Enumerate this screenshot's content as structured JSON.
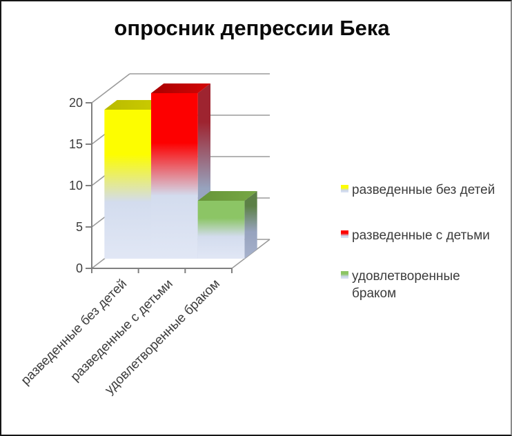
{
  "chart_data": {
    "type": "bar",
    "projection": "3d-column",
    "title": "опросник депрессии Бека",
    "categories": [
      "разведенные без детей",
      "разведенные с детьми",
      "удовлетворенные браком"
    ],
    "values": [
      18,
      20,
      7
    ],
    "points": [
      {
        "name": "разведенные без детей",
        "value": 18,
        "color": "#FDFD00",
        "top_color": "#B9BA00",
        "top_color2": "#CDCD00",
        "side_dark": "#9C9C28"
      },
      {
        "name": "разведенные с детьми",
        "value": 20,
        "color": "#FD0000",
        "top_color": "#A80000",
        "top_color2": "#D40707",
        "side_dark": "#9E2430"
      },
      {
        "name": "удовлетворенные браком",
        "value": 7,
        "color": "#8CC565",
        "top_color": "#679539",
        "top_color2": "#76A744",
        "side_dark": "#5C8046"
      }
    ],
    "yticks": [
      0,
      5,
      10,
      15,
      20
    ],
    "ylim": [
      0,
      20
    ],
    "xlabel": "",
    "ylabel": "",
    "grid": true,
    "legend_position": "right",
    "colors": {
      "bar_fade_1": "#D3DCEE",
      "bar_fade_2": "#E1E7F5",
      "side_slate_1": "#97A3BE",
      "side_slate_2": "#A6B1CC",
      "swatch_fade_1": "#CBD6EC",
      "swatch_fade_2": "#DCE3F2",
      "gridline": "#9A9A9A",
      "axis": "#7F7F7F",
      "label_text": "#3C3C3C",
      "title_text": "#0A0A0A",
      "background": "#FFFFFF"
    }
  }
}
